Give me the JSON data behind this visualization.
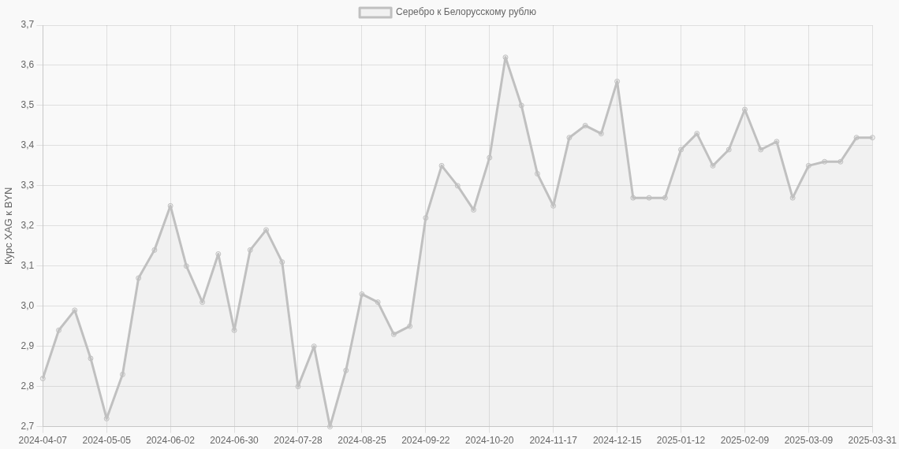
{
  "chart_data": {
    "type": "area",
    "categories": [
      "2024-04-07",
      null,
      null,
      null,
      "2024-05-05",
      null,
      null,
      null,
      "2024-06-02",
      null,
      null,
      null,
      "2024-06-30",
      null,
      null,
      null,
      "2024-07-28",
      null,
      null,
      null,
      "2024-08-25",
      null,
      null,
      null,
      "2024-09-22",
      null,
      null,
      null,
      "2024-10-20",
      null,
      null,
      null,
      "2024-11-17",
      null,
      null,
      null,
      "2024-12-15",
      null,
      null,
      null,
      "2025-01-12",
      null,
      null,
      null,
      "2025-02-09",
      null,
      null,
      null,
      "2025-03-09",
      null,
      null,
      null,
      "2025-03-31"
    ],
    "series": [
      {
        "name": "Серебро к Белорусскому рублю",
        "color": "#c0c0c0",
        "values": [
          2.82,
          2.94,
          2.99,
          2.87,
          2.72,
          2.83,
          3.07,
          3.14,
          3.25,
          3.1,
          3.01,
          3.13,
          2.94,
          3.14,
          3.19,
          3.11,
          2.8,
          2.9,
          2.7,
          2.84,
          3.03,
          3.01,
          2.93,
          2.95,
          3.22,
          3.35,
          3.3,
          3.24,
          3.37,
          3.62,
          3.5,
          3.33,
          3.25,
          3.42,
          3.45,
          3.43,
          3.56,
          3.27,
          3.27,
          3.27,
          3.39,
          3.43,
          3.35,
          3.39,
          3.49,
          3.39,
          3.41,
          3.27,
          3.35,
          3.36,
          3.36,
          3.42,
          3.42
        ]
      }
    ],
    "ylabel": "Курс XAG к BYN",
    "ylim": [
      2.7,
      3.7
    ],
    "yticks": [
      {
        "value": 2.7,
        "label": "2,7"
      },
      {
        "value": 2.8,
        "label": "2,8"
      },
      {
        "value": 2.9,
        "label": "2,9"
      },
      {
        "value": 3.0,
        "label": "3,0"
      },
      {
        "value": 3.1,
        "label": "3,1"
      },
      {
        "value": 3.2,
        "label": "3,2"
      },
      {
        "value": 3.3,
        "label": "3,3"
      },
      {
        "value": 3.4,
        "label": "3,4"
      },
      {
        "value": 3.5,
        "label": "3,5"
      },
      {
        "value": 3.6,
        "label": "3,6"
      },
      {
        "value": 3.7,
        "label": "3,7"
      }
    ],
    "grid": true,
    "legend": "top",
    "marker": "circle"
  }
}
